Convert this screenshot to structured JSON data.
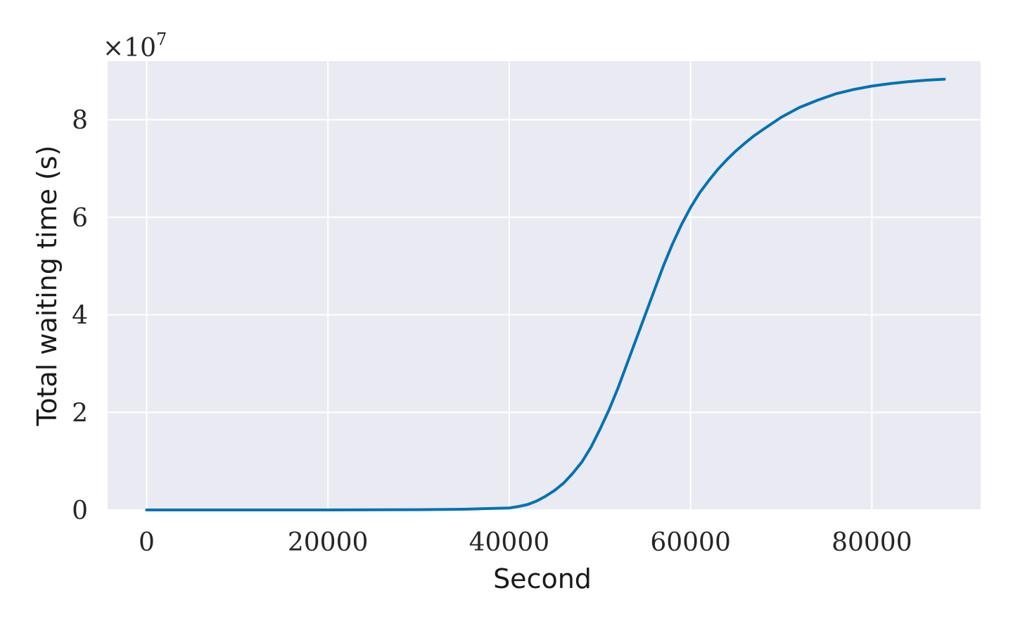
{
  "chart_data": {
    "type": "line",
    "xlabel": "Second",
    "ylabel": "Total waiting time (s)",
    "y_offset_label": "×10",
    "y_offset_exponent": "7",
    "xlim": [
      -4300,
      92000
    ],
    "ylim": [
      0,
      92000000
    ],
    "x_ticks": [
      0,
      20000,
      40000,
      60000,
      80000
    ],
    "x_tick_labels": [
      "0",
      "20000",
      "40000",
      "60000",
      "80000"
    ],
    "y_ticks": [
      0,
      20000000,
      40000000,
      60000000,
      80000000
    ],
    "y_tick_labels": [
      "0",
      "2",
      "4",
      "6",
      "8"
    ],
    "grid": true,
    "background": "#eaeaf2",
    "series": [
      {
        "color": "#0072b2",
        "x": [
          0,
          10000,
          20000,
          30000,
          35000,
          38000,
          40000,
          41000,
          42000,
          43000,
          44000,
          45000,
          46000,
          47000,
          48000,
          49000,
          50000,
          51000,
          52000,
          53000,
          54000,
          55000,
          56000,
          57000,
          58000,
          59000,
          60000,
          61000,
          62000,
          63000,
          64000,
          65000,
          66000,
          67000,
          68000,
          70000,
          72000,
          74000,
          76000,
          78000,
          80000,
          82000,
          84000,
          86000,
          88000
        ],
        "y": [
          0,
          0,
          0,
          50000,
          150000,
          300000,
          400000,
          700000,
          1100000,
          1800000,
          2800000,
          4000000,
          5500000,
          7500000,
          9800000,
          12800000,
          16500000,
          20500000,
          25000000,
          30000000,
          35000000,
          40000000,
          45000000,
          50000000,
          54500000,
          58500000,
          62000000,
          65000000,
          67500000,
          69800000,
          71800000,
          73600000,
          75200000,
          76700000,
          78000000,
          80500000,
          82500000,
          84000000,
          85300000,
          86200000,
          86900000,
          87400000,
          87800000,
          88100000,
          88300000
        ]
      }
    ]
  }
}
